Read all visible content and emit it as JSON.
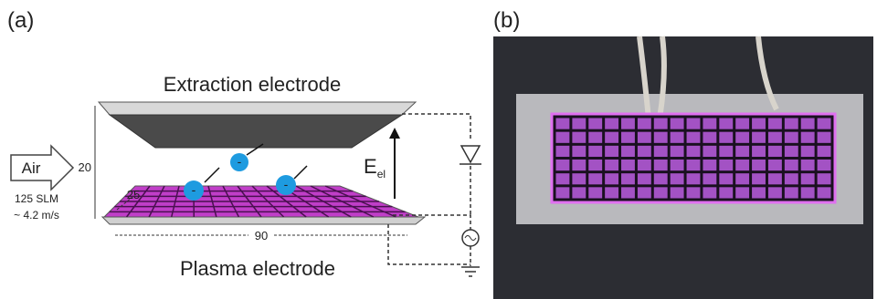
{
  "panel_a": {
    "label": "(a)",
    "top_electrode": "Extraction electrode",
    "bottom_electrode": "Plasma electrode",
    "flow": {
      "label": "Air",
      "rate": "125 SLM",
      "speed": "~ 4.2 m/s"
    },
    "dimensions": [
      "20",
      "25",
      "90"
    ],
    "field": {
      "symbol": "E",
      "subscript": "el"
    },
    "electrons": [
      "-",
      "-",
      "-"
    ]
  },
  "panel_b": {
    "label": "(b)"
  }
}
